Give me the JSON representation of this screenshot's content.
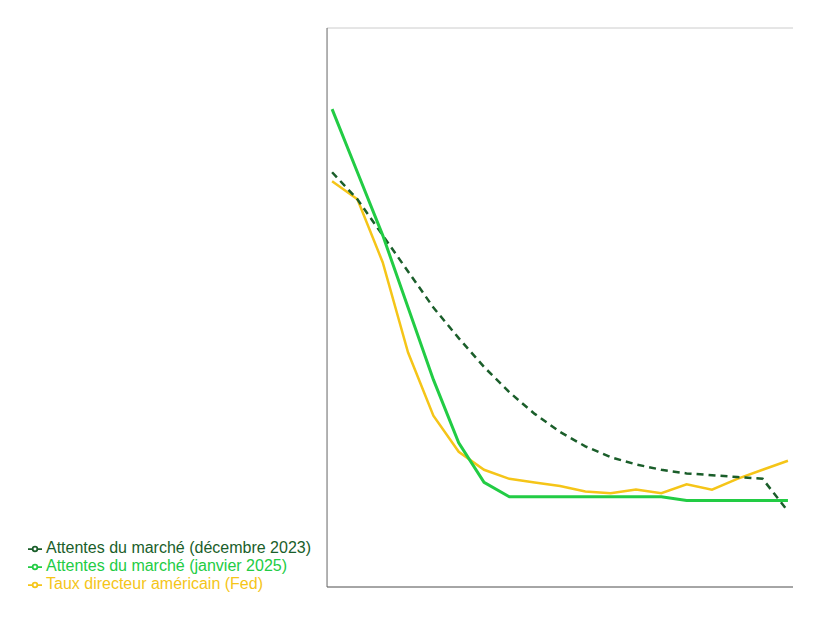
{
  "chart_data": {
    "type": "line",
    "x": [
      0,
      1,
      2,
      3,
      4,
      5,
      6,
      7,
      8,
      9,
      10,
      11,
      12,
      13,
      14,
      15,
      16,
      17,
      18
    ],
    "series": [
      {
        "name": "Taux directeur américain (Fed)",
        "color": "#f5c518",
        "line_style": "solid",
        "values": [
          4.65,
          4.55,
          4.2,
          3.7,
          3.35,
          3.15,
          3.05,
          3.0,
          2.98,
          2.96,
          2.93,
          2.92,
          2.94,
          2.92,
          2.97,
          2.94,
          3.0,
          3.05,
          3.1
        ]
      },
      {
        "name": "Attentes du marché (décembre 2023)",
        "color": "#1a5e2a",
        "line_style": "dashed",
        "values": [
          4.7,
          4.55,
          4.35,
          4.15,
          3.95,
          3.78,
          3.62,
          3.48,
          3.36,
          3.26,
          3.18,
          3.12,
          3.08,
          3.05,
          3.03,
          3.02,
          3.01,
          3.0,
          2.82
        ]
      },
      {
        "name": "Attentes du marché (janvier 2025)",
        "color": "#22cc44",
        "line_style": "solid",
        "values": [
          5.05,
          4.7,
          4.35,
          3.95,
          3.55,
          3.2,
          2.98,
          2.9,
          2.9,
          2.9,
          2.9,
          2.9,
          2.9,
          2.9,
          2.88,
          2.88,
          2.88,
          2.88,
          2.88
        ]
      }
    ],
    "xlim": [
      -0.2,
      18.2
    ],
    "ylim": [
      2.4,
      5.5
    ],
    "yticks": [
      2.5,
      3.0,
      3.5,
      4.0,
      4.5,
      5.0,
      5.5
    ],
    "grid": true,
    "legend": "lower left",
    "tick_labels": false
  }
}
